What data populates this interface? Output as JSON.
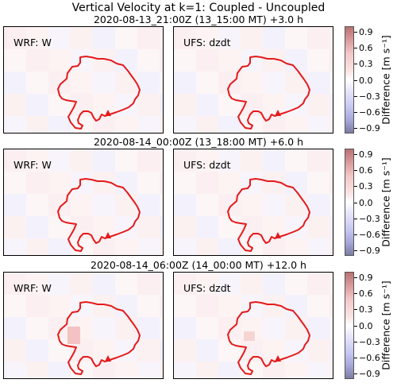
{
  "title": "Vertical Velocity at k=1: Coupled - Uncoupled",
  "rows": [
    {
      "subtitle": "2020-08-13_21:00Z  (13_15:00 MT) +3.0 h",
      "left_label": "WRF: W",
      "right_label": "UFS: dzdt"
    },
    {
      "subtitle": "2020-08-14_00:00Z  (13_18:00 MT) +6.0 h",
      "left_label": "WRF: W",
      "right_label": "UFS: dzdt"
    },
    {
      "subtitle": "2020-08-14_06:00Z  (14_00:00 MT) +12.0 h",
      "left_label": "WRF: W",
      "right_label": "UFS: dzdt"
    }
  ],
  "colorbar": {
    "label": "Difference [m s⁻¹]",
    "ticks": [
      "0.9",
      "0.6",
      "0.3",
      "0.0",
      "−0.3",
      "−0.6",
      "−0.9"
    ],
    "range": [
      -1.0,
      1.0
    ]
  },
  "colors": {
    "outline": "#e41a1c",
    "positive": "#f7c6c6",
    "negative": "#e8e8fb",
    "neutral": "#fbf6f8"
  },
  "chart_data": {
    "type": "heatmap",
    "title": "Vertical Velocity at k=1: Coupled - Uncoupled",
    "panels": [
      {
        "row": 1,
        "col": 1,
        "label": "WRF: W",
        "time": "2020-08-13_21:00Z  (13_15:00 MT) +3.0 h"
      },
      {
        "row": 1,
        "col": 2,
        "label": "UFS: dzdt",
        "time": "2020-08-13_21:00Z  (13_15:00 MT) +3.0 h"
      },
      {
        "row": 2,
        "col": 1,
        "label": "WRF: W",
        "time": "2020-08-14_00:00Z  (13_18:00 MT) +6.0 h"
      },
      {
        "row": 2,
        "col": 2,
        "label": "UFS: dzdt",
        "time": "2020-08-14_00:00Z  (13_18:00 MT) +6.0 h"
      },
      {
        "row": 3,
        "col": 1,
        "label": "WRF: W",
        "time": "2020-08-14_06:00Z  (14_00:00 MT) +12.0 h"
      },
      {
        "row": 3,
        "col": 2,
        "label": "UFS: dzdt",
        "time": "2020-08-14_06:00Z  (14_00:00 MT) +12.0 h"
      }
    ],
    "colorbar_range": [
      -1.0,
      1.0
    ],
    "colorbar_ticks": [
      0.9,
      0.6,
      0.3,
      0.0,
      -0.3,
      -0.6,
      -0.9
    ],
    "colorbar_label": "Difference [m s⁻¹]"
  }
}
